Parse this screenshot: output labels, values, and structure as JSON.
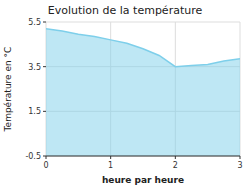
{
  "chart_data": {
    "type": "area",
    "title": "Evolution de la température",
    "xlabel": "heure par heure",
    "ylabel": "Température en °C",
    "x": [
      0,
      0.25,
      0.5,
      0.75,
      1.0,
      1.25,
      1.5,
      1.75,
      2.0,
      2.25,
      2.5,
      2.75,
      3.0
    ],
    "values": [
      5.2,
      5.1,
      4.95,
      4.85,
      4.7,
      4.55,
      4.3,
      4.0,
      3.5,
      3.55,
      3.6,
      3.75,
      3.85
    ],
    "color": "#7ecfea",
    "xlim": [
      0,
      3
    ],
    "ylim": [
      -0.5,
      5.5
    ],
    "xticks": [
      0,
      1,
      2,
      3
    ],
    "yticks": [
      -0.5,
      1.5,
      3.5,
      5.5
    ],
    "grid": true
  }
}
